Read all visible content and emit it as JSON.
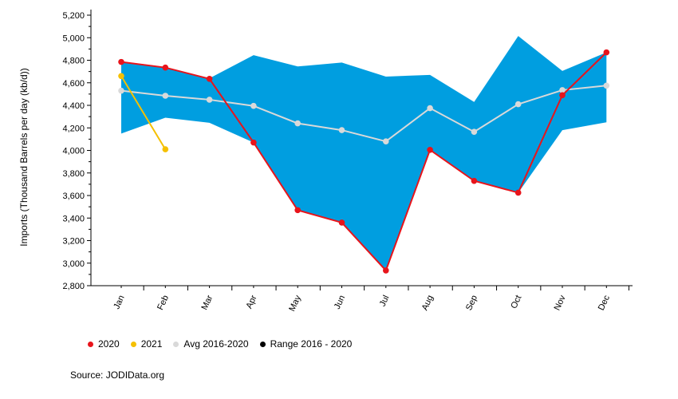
{
  "chart_data": {
    "type": "line",
    "categories": [
      "Jan",
      "Feb",
      "Mar",
      "Apr",
      "May",
      "Jun",
      "Jul",
      "Aug",
      "Sep",
      "Oct",
      "Nov",
      "Dec"
    ],
    "ylabel": "Imports (Thousand Barrels per day (kb/d))",
    "ylim": [
      2800,
      5200
    ],
    "yticks": [
      2800,
      3000,
      3200,
      3400,
      3600,
      3800,
      4000,
      4200,
      4400,
      4600,
      4800,
      5000,
      5200
    ],
    "ytick_labels": [
      "2,800",
      "3,000",
      "3,200",
      "3,400",
      "3,600",
      "3,800",
      "4,000",
      "4,200",
      "4,400",
      "4,600",
      "4,800",
      "5,000",
      "5,200"
    ],
    "grid": false,
    "legend_position": "bottom-left",
    "range": {
      "name": "Range 2016 - 2020",
      "color": "#009ee0",
      "min": [
        4150,
        4290,
        4245,
        4070,
        3470,
        3360,
        2935,
        4000,
        3730,
        3625,
        4180,
        4250
      ],
      "max": [
        4790,
        4740,
        4640,
        4845,
        4745,
        4780,
        4655,
        4670,
        4430,
        5015,
        4705,
        4870
      ]
    },
    "series": [
      {
        "name": "2020",
        "color": "#e8141b",
        "values": [
          4785,
          4735,
          4635,
          4070,
          3470,
          3360,
          2935,
          4005,
          3730,
          3625,
          4490,
          4870
        ]
      },
      {
        "name": "2021",
        "color": "#f5c000",
        "values": [
          4660,
          4010,
          null,
          null,
          null,
          null,
          null,
          null,
          null,
          null,
          null,
          null
        ]
      },
      {
        "name": "Avg 2016-2020",
        "color": "#d9d9d9",
        "values": [
          4530,
          4485,
          4450,
          4395,
          4240,
          4180,
          4080,
          4375,
          4165,
          4410,
          4535,
          4575
        ]
      }
    ]
  },
  "legend": [
    {
      "label": "2020",
      "color": "#e8141b"
    },
    {
      "label": "2021",
      "color": "#f5c000"
    },
    {
      "label": "Avg 2016-2020",
      "color": "#d9d9d9"
    },
    {
      "label": "Range 2016 - 2020",
      "color": "#000000"
    }
  ],
  "source": "Source: JODIData.org"
}
